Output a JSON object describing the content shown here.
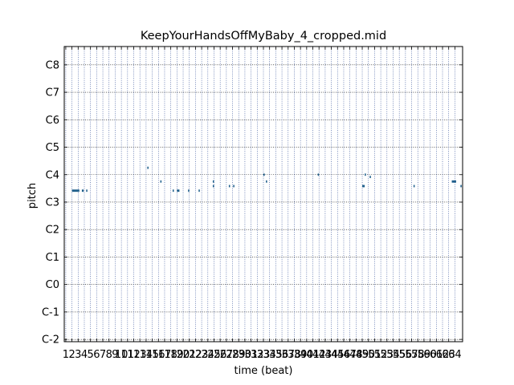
{
  "chart_data": {
    "type": "scatter",
    "title": "KeepYourHandsOffMyBaby_4_cropped.mid",
    "xlabel": "time (beat)",
    "ylabel": "pitch",
    "xlim": [
      0.75,
      65.25
    ],
    "ylim": [
      -1,
      128
    ],
    "x_ticks": [
      1,
      2,
      3,
      4,
      5,
      6,
      7,
      8,
      9,
      10,
      11,
      12,
      13,
      14,
      15,
      16,
      17,
      18,
      19,
      20,
      21,
      22,
      23,
      24,
      25,
      26,
      27,
      28,
      29,
      30,
      31,
      32,
      33,
      34,
      35,
      36,
      37,
      38,
      39,
      40,
      41,
      42,
      43,
      44,
      45,
      46,
      47,
      48,
      49,
      50,
      51,
      52,
      53,
      54,
      55,
      56,
      57,
      58,
      59,
      60,
      61,
      62,
      63,
      64
    ],
    "y_ticks": [
      {
        "value": 0,
        "label": "C-2"
      },
      {
        "value": 12,
        "label": "C-1"
      },
      {
        "value": 24,
        "label": "C0"
      },
      {
        "value": 36,
        "label": "C1"
      },
      {
        "value": 48,
        "label": "C2"
      },
      {
        "value": 60,
        "label": "C3"
      },
      {
        "value": 72,
        "label": "C4"
      },
      {
        "value": 84,
        "label": "C5"
      },
      {
        "value": 96,
        "label": "C6"
      },
      {
        "value": 108,
        "label": "C7"
      },
      {
        "value": 120,
        "label": "C8"
      }
    ],
    "grid": true,
    "note_color": "#1f5f8b",
    "notes": [
      {
        "start": 2.0,
        "end": 3.2,
        "pitch": 65
      },
      {
        "start": 3.6,
        "end": 3.9,
        "pitch": 65
      },
      {
        "start": 4.3,
        "end": 4.5,
        "pitch": 65
      },
      {
        "start": 14.2,
        "end": 14.4,
        "pitch": 75
      },
      {
        "start": 16.3,
        "end": 16.5,
        "pitch": 69
      },
      {
        "start": 18.3,
        "end": 18.5,
        "pitch": 65
      },
      {
        "start": 19.0,
        "end": 19.4,
        "pitch": 65
      },
      {
        "start": 20.8,
        "end": 21.0,
        "pitch": 65
      },
      {
        "start": 22.5,
        "end": 22.7,
        "pitch": 65
      },
      {
        "start": 24.8,
        "end": 25.0,
        "pitch": 69
      },
      {
        "start": 24.8,
        "end": 25.0,
        "pitch": 67
      },
      {
        "start": 27.4,
        "end": 27.6,
        "pitch": 67
      },
      {
        "start": 28.1,
        "end": 28.3,
        "pitch": 67
      },
      {
        "start": 33.0,
        "end": 33.2,
        "pitch": 72
      },
      {
        "start": 33.4,
        "end": 33.6,
        "pitch": 69
      },
      {
        "start": 41.8,
        "end": 42.0,
        "pitch": 72
      },
      {
        "start": 49.0,
        "end": 49.4,
        "pitch": 67
      },
      {
        "start": 49.4,
        "end": 49.6,
        "pitch": 72
      },
      {
        "start": 50.2,
        "end": 50.4,
        "pitch": 71
      },
      {
        "start": 57.3,
        "end": 57.5,
        "pitch": 67
      },
      {
        "start": 63.5,
        "end": 64.2,
        "pitch": 69
      },
      {
        "start": 64.9,
        "end": 65.1,
        "pitch": 67
      }
    ]
  }
}
